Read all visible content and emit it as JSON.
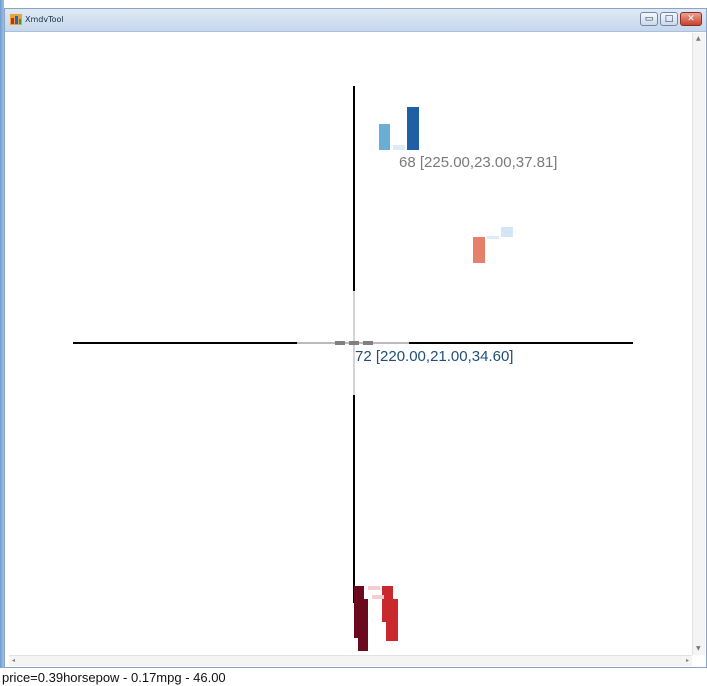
{
  "window": {
    "title": "XmdvTool",
    "minimize_glyph": "▭",
    "maximize_glyph": "□",
    "close_glyph": "✕"
  },
  "scrollbars": {
    "up_arrow": "▲",
    "down_arrow": "▼",
    "left_arrow": "◂",
    "right_arrow": "▸"
  },
  "plot": {
    "labels": [
      {
        "id": "point-68",
        "text": "68 [225.00,23.00,37.81]",
        "color": "#7a7a7a"
      },
      {
        "id": "point-72",
        "text": "72 [220.00,21.00,34.60]",
        "color": "#1f4e79"
      }
    ]
  },
  "colors": {
    "blue_light": "#6aaed6",
    "blue_pale": "#deebf7",
    "blue_dark": "#1f5fa6",
    "orange": "#e6806b",
    "pale_blue2": "#d3e6f5",
    "red_dark": "#6b0a1e",
    "red": "#c9282d",
    "red_light": "#f4cdd0"
  },
  "status": {
    "text": "price=0.39horsepow - 0.17mpg - 46.00"
  }
}
